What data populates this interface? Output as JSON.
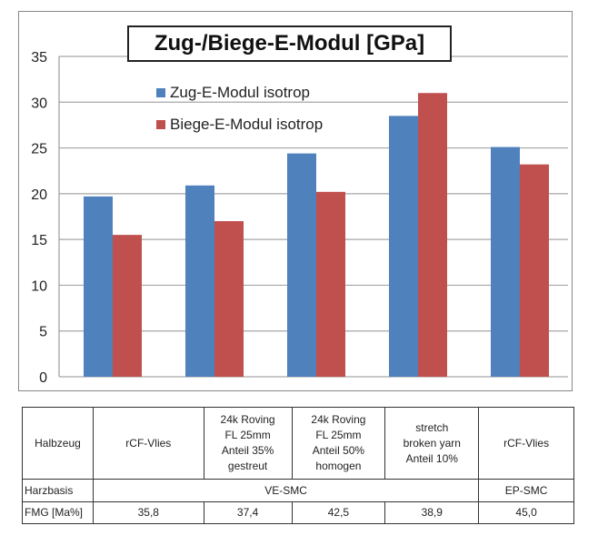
{
  "chart_data": {
    "type": "bar",
    "title": "Zug-/Biege-E-Modul [GPa]",
    "categories": [
      "rCF-Vlies",
      "24k Roving FL 25mm Anteil 35% gestreut",
      "24k Roving FL 25mm Anteil 50% homogen",
      "stretch broken yarn Anteil 10%",
      "rCF-Vlies"
    ],
    "series": [
      {
        "name": "Zug-E-Modul isotrop",
        "color": "#4f81bd",
        "values": [
          19.7,
          20.9,
          24.4,
          28.5,
          25.1
        ]
      },
      {
        "name": "Biege-E-Modul isotrop",
        "color": "#c0504d",
        "values": [
          15.5,
          17.0,
          20.2,
          31.0,
          23.2
        ]
      }
    ],
    "ylim": [
      0,
      35
    ],
    "yticks": [
      "0",
      "5",
      "10",
      "15",
      "20",
      "25",
      "30",
      "35"
    ],
    "grid": true,
    "legend": "top-left"
  },
  "table": {
    "rows": [
      {
        "label": "Halbzeug",
        "cells": [
          "rCF-Vlies",
          "24k Roving\nFL 25mm\nAnteil 35%\ngestreut",
          "24k Roving\nFL 25mm\nAnteil 50%\nhomogen",
          "stretch\nbroken yarn\nAnteil 10%",
          "rCF-Vlies"
        ]
      },
      {
        "label": "Harzbasis",
        "merged": "VE-SMC",
        "last": "EP-SMC"
      },
      {
        "label": "FMG [Ma%]",
        "cells": [
          "35,8",
          "37,4",
          "42,5",
          "38,9",
          "45,0"
        ]
      }
    ]
  }
}
